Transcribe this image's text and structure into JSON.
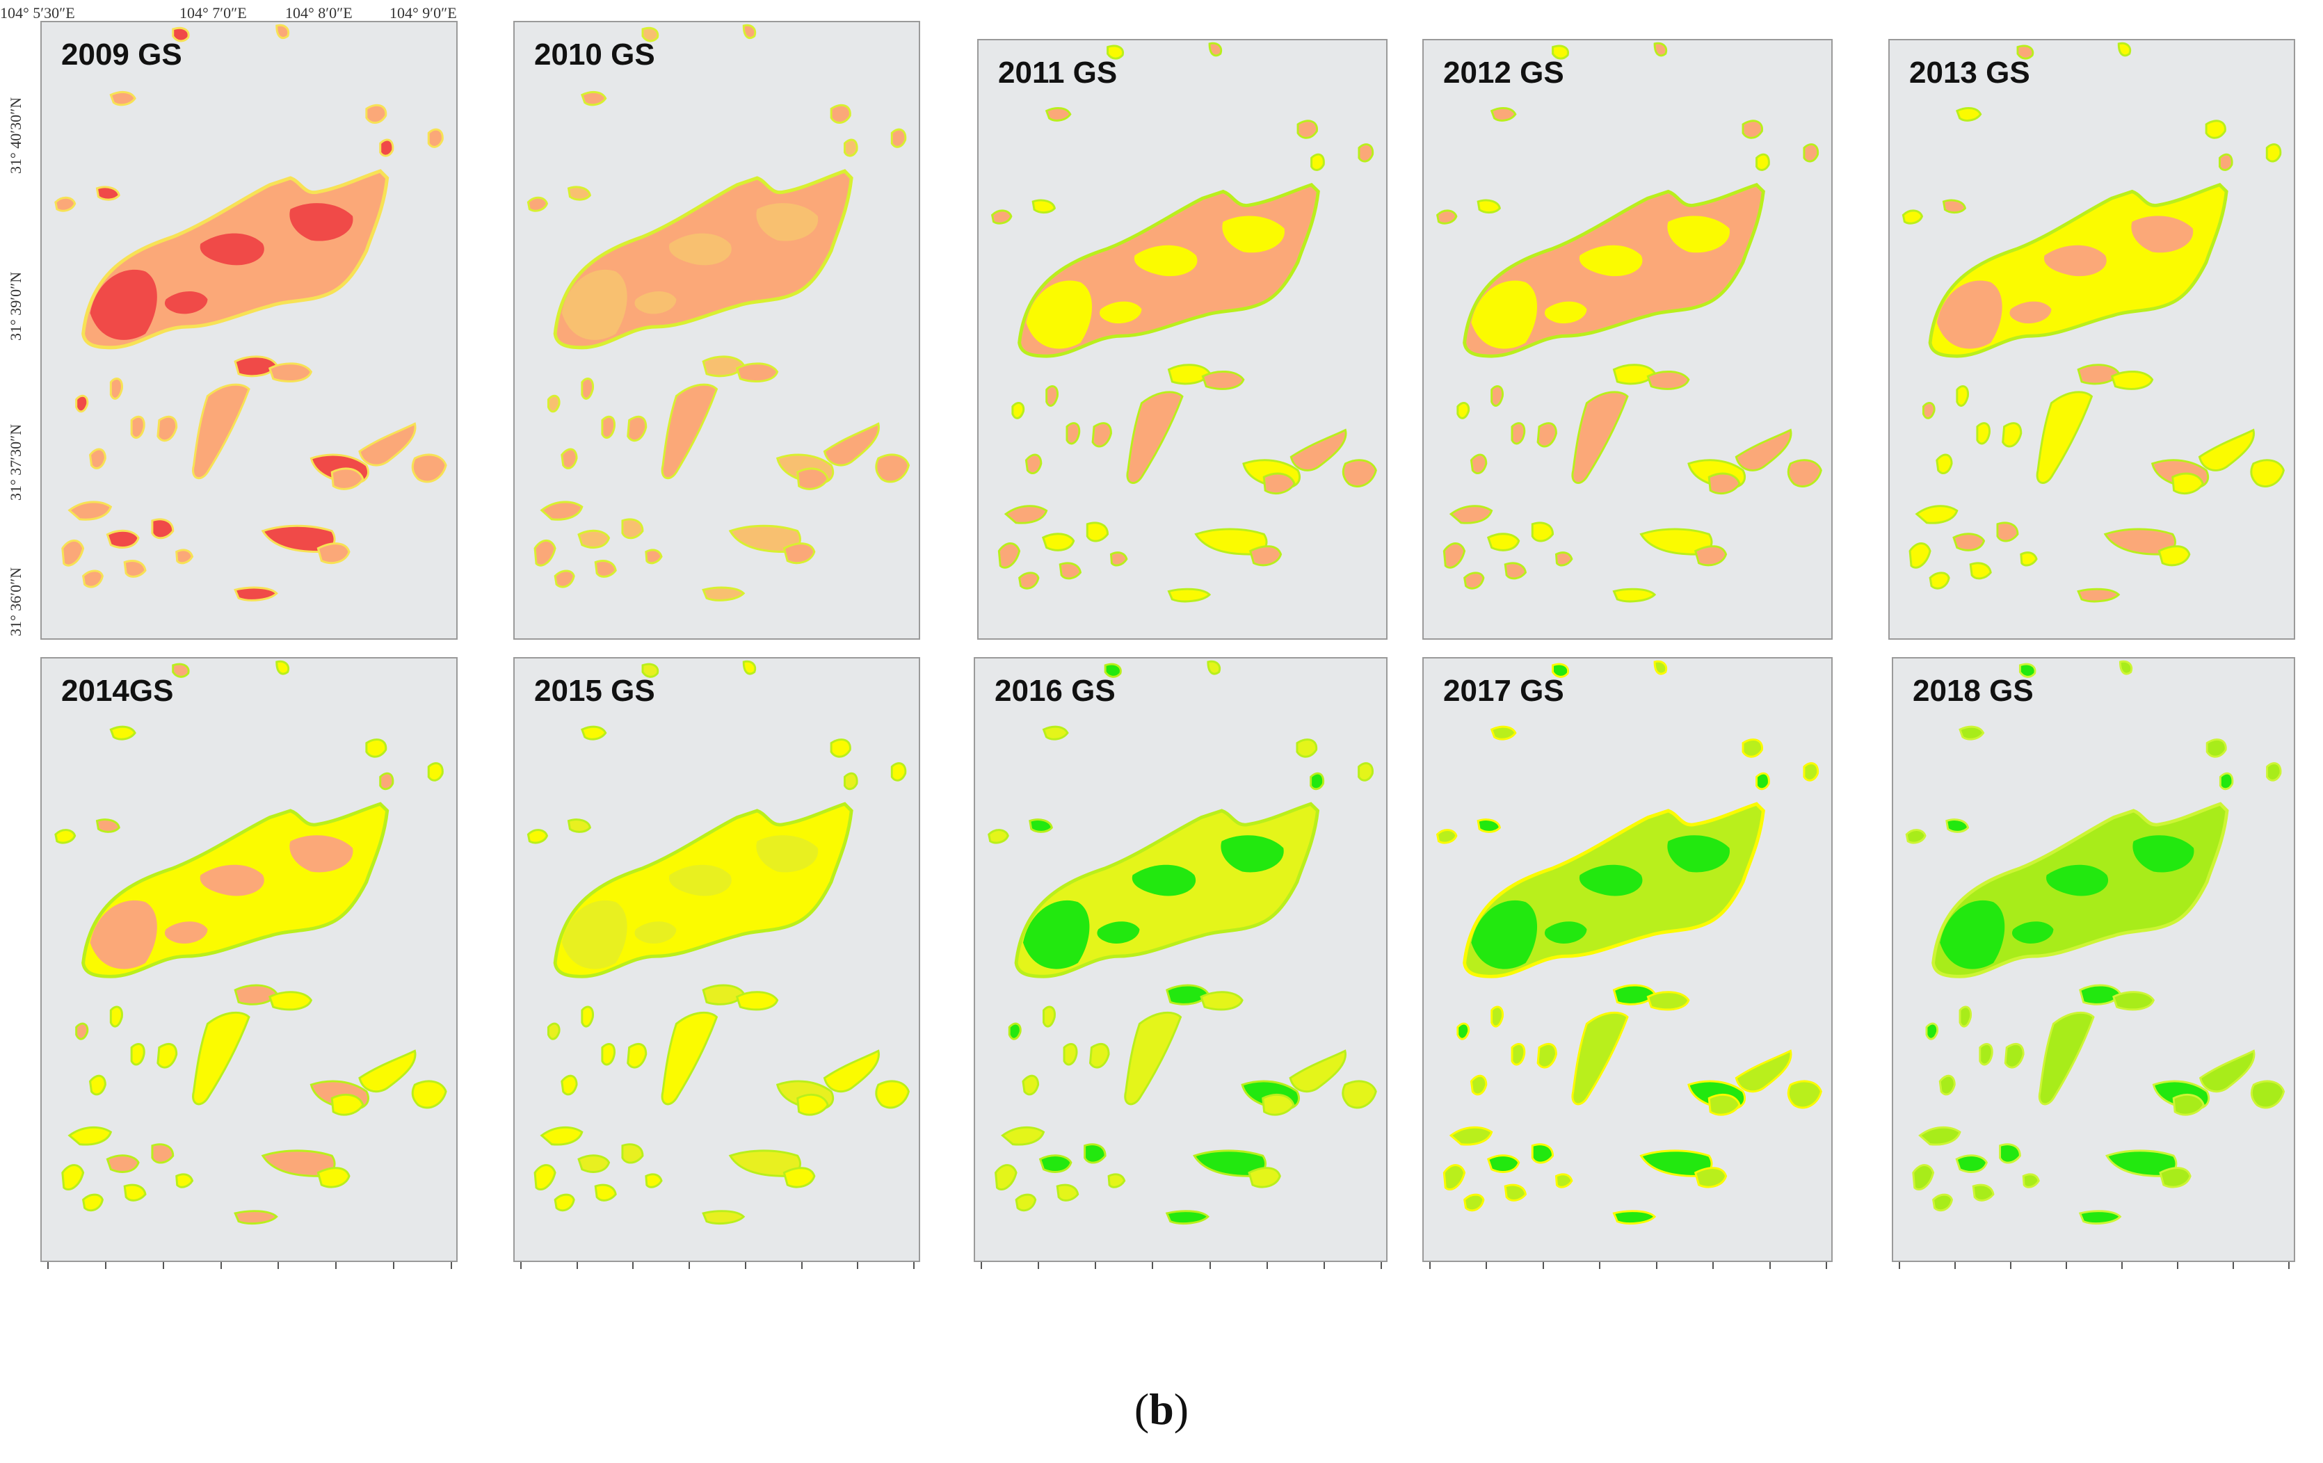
{
  "lon_labels": [
    "104° 5′30″E",
    "104° 7′0″E",
    "104° 8′0″E",
    "104° 9′0″E"
  ],
  "lat_labels": [
    "31° 40′30″N",
    "31° 39′0″N",
    "31° 37′30″N",
    "31° 36′0″N"
  ],
  "caption": {
    "open": "(",
    "letter": "b",
    "close": ")"
  },
  "colors": {
    "background": "#e6e8ea",
    "red": "#f04a48",
    "salmon": "#fba878",
    "yellow": "#fbfb00",
    "yellowgreen": "#b9ef1c",
    "green": "#22e80f"
  },
  "panels": [
    {
      "label": "2009 GS",
      "palette": {
        "main": "#fba878",
        "patch": "#f04a48",
        "edge": "#f7e255"
      }
    },
    {
      "label": "2010 GS",
      "palette": {
        "main": "#fba878",
        "patch": "#f8c070",
        "edge": "#d8f030"
      }
    },
    {
      "label": "2011 GS",
      "palette": {
        "main": "#fba878",
        "patch": "#fbfb00",
        "edge": "#b9ef1c"
      }
    },
    {
      "label": "2012 GS",
      "palette": {
        "main": "#fba878",
        "patch": "#fbfb00",
        "edge": "#b9ef1c"
      }
    },
    {
      "label": "2013 GS",
      "palette": {
        "main": "#fbfb00",
        "patch": "#fba878",
        "edge": "#b9ef1c"
      }
    },
    {
      "label": "2014GS",
      "palette": {
        "main": "#fbfb00",
        "patch": "#fba878",
        "edge": "#b9ef1c"
      }
    },
    {
      "label": "2015 GS",
      "palette": {
        "main": "#fbfb00",
        "patch": "#e8f020",
        "edge": "#b9ef1c"
      }
    },
    {
      "label": "2016 GS",
      "palette": {
        "main": "#e4f51a",
        "patch": "#22e80f",
        "edge": "#b9ef1c"
      }
    },
    {
      "label": "2017 GS",
      "palette": {
        "main": "#b9ef1c",
        "patch": "#22e80f",
        "edge": "#fbfb00"
      }
    },
    {
      "label": "2018 GS",
      "palette": {
        "main": "#a8ec1a",
        "patch": "#22e80f",
        "edge": "#cdf535"
      }
    }
  ]
}
